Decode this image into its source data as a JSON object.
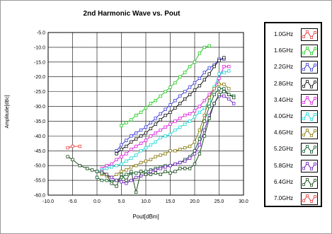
{
  "chart_data": {
    "type": "line",
    "title": "2nd Harmonic Wave vs. Pout",
    "xlabel": "Pout[dBm]",
    "ylabel": "Amplitude[dBc]",
    "xlim": [
      -10,
      30
    ],
    "ylim": [
      -60,
      -5
    ],
    "xticks": [
      "-10.0",
      "-5.0",
      "0.0",
      "5.0",
      "10.0",
      "15.0",
      "20.0",
      "25.0",
      "30.0"
    ],
    "yticks": [
      "-5.0",
      "-10.0",
      "-15.0",
      "-20.0",
      "-25.0",
      "-30.0",
      "-35.0",
      "-40.0",
      "-45.0",
      "-50.0",
      "-55.0",
      "-60.0"
    ],
    "grid": true,
    "legend_position": "right",
    "series": [
      {
        "name": "1.0GHz",
        "color": "#e84040",
        "x": [
          -6,
          -5,
          -3.5
        ],
        "y": [
          -44,
          -43.5,
          -43.5
        ]
      },
      {
        "name": "1.6GHz",
        "color": "#22cc22",
        "x": [
          5,
          6,
          7,
          8,
          9,
          10,
          11,
          12,
          13,
          14,
          15,
          16,
          17,
          18,
          19,
          20,
          21,
          22,
          23
        ],
        "y": [
          -36.5,
          -35.5,
          -34.5,
          -33,
          -32,
          -30.5,
          -29,
          -28,
          -26.5,
          -25,
          -23.5,
          -22,
          -20,
          -18.5,
          -16.5,
          -15,
          -12,
          -10,
          -9.5
        ]
      },
      {
        "name": "2.2GHz",
        "color": "#3a3adc",
        "x": [
          4,
          5,
          6,
          7,
          8,
          9,
          10,
          11,
          12,
          13,
          14,
          15,
          16,
          17,
          18,
          19,
          20,
          21,
          22,
          23,
          24,
          25,
          26
        ],
        "y": [
          -45,
          -43,
          -41.5,
          -40,
          -39,
          -38,
          -37,
          -35.5,
          -34,
          -32.5,
          -31,
          -29.5,
          -28,
          -26.5,
          -25,
          -23.5,
          -22,
          -20.5,
          -18.5,
          -17,
          -16,
          -14,
          -14
        ]
      },
      {
        "name": "2.8GHz",
        "color": "#111111",
        "x": [
          4,
          5,
          6,
          7,
          8,
          9,
          10,
          11,
          12,
          13,
          14,
          15,
          16,
          17,
          18,
          19,
          20,
          21,
          22,
          23,
          24,
          25,
          26
        ],
        "y": [
          -46,
          -44.5,
          -43.5,
          -42,
          -41,
          -40,
          -39,
          -37.5,
          -36,
          -34.5,
          -33,
          -32,
          -30.5,
          -29,
          -27.5,
          -26,
          -24.5,
          -23,
          -21,
          -19,
          -16.5,
          -14.5,
          -13.5
        ]
      },
      {
        "name": "3.4GHz",
        "color": "#e020e0",
        "x": [
          1,
          2,
          3,
          4,
          5,
          6,
          7,
          8,
          9,
          10,
          11,
          12,
          13,
          14,
          15,
          16,
          17,
          18,
          19,
          20,
          21,
          22,
          23,
          24,
          25,
          26,
          27
        ],
        "y": [
          -51,
          -50,
          -49.5,
          -48,
          -47,
          -46,
          -44.5,
          -43.5,
          -42.5,
          -41.5,
          -40,
          -39,
          -38,
          -37,
          -36,
          -35,
          -34,
          -33,
          -32.5,
          -31.5,
          -30,
          -28,
          -26,
          -24,
          -20.5,
          -16.5,
          -16.5
        ]
      },
      {
        "name": "4.0GHz",
        "color": "#20d8d8",
        "x": [
          0,
          1,
          2,
          3,
          4,
          5,
          6,
          7,
          8,
          9,
          10,
          11,
          12,
          13,
          14,
          15,
          16,
          17,
          18,
          19,
          20,
          21,
          22,
          23,
          24,
          25,
          26,
          27
        ],
        "y": [
          -52,
          -51.5,
          -51,
          -50.5,
          -50,
          -49.5,
          -48.5,
          -47.5,
          -46.5,
          -45,
          -44,
          -43,
          -42,
          -40.5,
          -40,
          -39.5,
          -38,
          -37,
          -36,
          -35,
          -33.5,
          -32,
          -30.5,
          -28,
          -23.5,
          -19,
          -18.5,
          -18
        ]
      },
      {
        "name": "4.6GHz",
        "color": "#8a7a10",
        "x": [
          1,
          2,
          3,
          4,
          5,
          6,
          7,
          8,
          9,
          10,
          11,
          12,
          13,
          14,
          15,
          16,
          17,
          18,
          19,
          20,
          21,
          22,
          23,
          24,
          25,
          26,
          27
        ],
        "y": [
          -53,
          -53.5,
          -54,
          -53,
          -52,
          -51.5,
          -50.5,
          -50,
          -49,
          -48.5,
          -48,
          -47,
          -46.5,
          -46,
          -45,
          -45,
          -44.5,
          -44,
          -43.5,
          -42,
          -38,
          -33,
          -27,
          -24,
          -22.5,
          -22.5,
          -24
        ]
      },
      {
        "name": "5.2GHz",
        "color": "#0f5f2f",
        "x": [
          0,
          1,
          2,
          3,
          4,
          5,
          6,
          7,
          8,
          9,
          10,
          11,
          12,
          13,
          14,
          15,
          16,
          17,
          18,
          19,
          20,
          21,
          22,
          23,
          24,
          25,
          26,
          27,
          28
        ],
        "y": [
          -54,
          -55,
          -55,
          -55.5,
          -55,
          -54,
          -53,
          -52.5,
          -52.5,
          -52,
          -52,
          -51.5,
          -51,
          -50.5,
          -50,
          -50,
          -49.5,
          -49,
          -48,
          -47,
          -45,
          -41,
          -35,
          -30,
          -26,
          -24,
          -24,
          -26,
          -26.5
        ]
      },
      {
        "name": "5.8GHz",
        "color": "#7020c0",
        "x": [
          1,
          2,
          3,
          4,
          5,
          6,
          7,
          8,
          9,
          10,
          11,
          12,
          13,
          14,
          15,
          16,
          17,
          18,
          19,
          20,
          21,
          22,
          23,
          24,
          25,
          26,
          27,
          28
        ],
        "y": [
          -52,
          -53,
          -54,
          -55,
          -55.5,
          -56,
          -55,
          -54,
          -53.5,
          -53,
          -52,
          -51.5,
          -51,
          -50.5,
          -50,
          -49.5,
          -49,
          -48.5,
          -47.5,
          -46,
          -43,
          -38,
          -33,
          -29,
          -26.5,
          -26.5,
          -27.5,
          -29
        ]
      },
      {
        "name": "6.4GHz",
        "color": "#1a4a1a",
        "x": [
          -6,
          -5,
          -3.5,
          -2,
          -1,
          0,
          1,
          2,
          3,
          4,
          5,
          6,
          7,
          8,
          9,
          10,
          11,
          12,
          13,
          14,
          15,
          16,
          17,
          18,
          19,
          20,
          21,
          22,
          23,
          24,
          25,
          26,
          27,
          28
        ],
        "y": [
          -47,
          -48,
          -50,
          -51,
          -51.5,
          -52,
          -52.5,
          -53,
          -56,
          -57,
          -53,
          -55,
          -52,
          -59,
          -52,
          -53,
          -53,
          -52.5,
          -53,
          -52,
          -52.5,
          -52,
          -51,
          -51,
          -51,
          -49.5,
          -46,
          -40,
          -34,
          -29,
          -26,
          -25,
          -26,
          -27
        ]
      },
      {
        "name": "7.0GHz",
        "color": "#e84040",
        "x": [],
        "y": []
      }
    ]
  }
}
